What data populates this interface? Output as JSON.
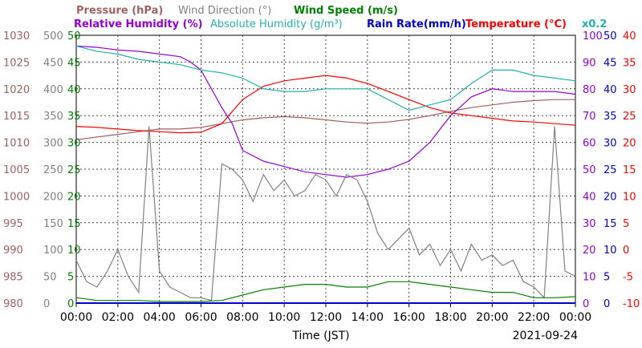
{
  "chart_data": {
    "type": "line",
    "title_row1": [
      {
        "text": "Pressure (hPa)",
        "color": "#a06060"
      },
      {
        "text": "Wind Direction (°)",
        "color": "#808080"
      },
      {
        "text": "Wind Speed (m/s)",
        "color": "#008000"
      }
    ],
    "title_row2": [
      {
        "text": "Relative Humidity (%)",
        "color": "#9400d3"
      },
      {
        "text": "Absolute Humidity (g/m³)",
        "color": "#20b2aa"
      },
      {
        "text": "Rain Rate(mm/h)",
        "color": "#0000cd"
      },
      {
        "text": "Temperature (°C)",
        "color": "#ff0000"
      },
      {
        "text": "x0.2",
        "color": "#20b2aa"
      }
    ],
    "xlabel": "Time (JST)",
    "date": "2021-09-24",
    "x_ticks": [
      "00:00",
      "02:00",
      "04:00",
      "06:00",
      "08:00",
      "10:00",
      "12:00",
      "14:00",
      "16:00",
      "18:00",
      "20:00",
      "22:00",
      "00:00"
    ],
    "x_range_hours": [
      0,
      24
    ],
    "grid": true,
    "axes": {
      "pressure": {
        "ticks": [
          980,
          985,
          990,
          995,
          1000,
          1005,
          1010,
          1015,
          1020,
          1025,
          1030
        ],
        "range": [
          980,
          1030
        ],
        "color": "#a06060"
      },
      "wind_direction": {
        "ticks": [
          0,
          50,
          100,
          150,
          200,
          250,
          300,
          350,
          400,
          450,
          500
        ],
        "range": [
          0,
          500
        ],
        "color": "#808080"
      },
      "wind_speed": {
        "ticks": [
          0,
          5,
          10,
          15,
          20,
          25,
          30,
          35,
          40,
          45,
          50
        ],
        "range": [
          0,
          50
        ],
        "color": "#008000"
      },
      "relative_humidity": {
        "ticks": [
          0,
          10,
          20,
          30,
          40,
          50,
          60,
          70,
          80,
          90,
          100
        ],
        "range": [
          0,
          100
        ],
        "color": "#9400d3"
      },
      "rain_rate": {
        "ticks": [
          0,
          5,
          10,
          15,
          20,
          25,
          30,
          35,
          40,
          45,
          50
        ],
        "range": [
          0,
          50
        ],
        "color": "#0000cd"
      },
      "temperature": {
        "ticks": [
          -10,
          -5,
          0,
          5,
          10,
          15,
          20,
          25,
          30,
          35,
          40
        ],
        "range": [
          -10,
          40
        ],
        "color": "#ff0000"
      }
    },
    "series": [
      {
        "name": "Pressure (hPa)",
        "axis": "pressure",
        "color": "#a06060",
        "x": [
          0,
          1,
          2,
          3,
          4,
          5,
          6,
          7,
          8,
          9,
          10,
          11,
          12,
          13,
          14,
          15,
          16,
          17,
          18,
          19,
          20,
          21,
          22,
          23,
          24
        ],
        "y": [
          1010.5,
          1011,
          1011.5,
          1012,
          1012.5,
          1012.5,
          1012.8,
          1013.5,
          1014.2,
          1014.6,
          1014.8,
          1014.6,
          1014.2,
          1013.8,
          1013.6,
          1013.8,
          1014.3,
          1015,
          1015.8,
          1016.5,
          1017,
          1017.5,
          1017.8,
          1018,
          1018
        ]
      },
      {
        "name": "Temperature (°C)",
        "axis": "temperature",
        "color": "#ff0000",
        "x": [
          0,
          1,
          2,
          3,
          4,
          5,
          6,
          7,
          8,
          9,
          10,
          11,
          12,
          13,
          14,
          15,
          16,
          17,
          18,
          19,
          20,
          21,
          22,
          23,
          24
        ],
        "y": [
          23,
          22.8,
          22.5,
          22.2,
          22,
          21.8,
          21.9,
          23.5,
          28,
          30.5,
          31.5,
          32,
          32.5,
          32,
          31,
          29.5,
          28,
          26.5,
          25.5,
          25,
          24.5,
          24,
          23.8,
          23.5,
          23.2
        ]
      },
      {
        "name": "Relative Humidity (%)",
        "axis": "relative_humidity",
        "color": "#9400d3",
        "x": [
          0,
          1,
          2,
          3,
          4,
          5,
          5.5,
          6,
          6.5,
          7,
          7.5,
          8,
          9,
          10,
          11,
          12,
          13,
          14,
          15,
          16,
          17,
          18,
          19,
          20,
          21,
          22,
          23,
          24
        ],
        "y": [
          96,
          95.5,
          94.5,
          94,
          93,
          92,
          90,
          87,
          80,
          73,
          67,
          57,
          53,
          51,
          49,
          48,
          47,
          48,
          50,
          53,
          60,
          70,
          77,
          80,
          79,
          79,
          79,
          78
        ]
      },
      {
        "name": "Absolute Humidity (g/m³) x0.2",
        "axis": "relative_humidity",
        "color": "#20b2aa",
        "x": [
          0,
          1,
          2,
          3,
          4,
          5,
          6,
          7,
          8,
          9,
          10,
          11,
          12,
          13,
          14,
          15,
          16,
          17,
          18,
          19,
          20,
          21,
          22,
          23,
          24
        ],
        "y": [
          96,
          94,
          93,
          91,
          90,
          89,
          87,
          86,
          84,
          80,
          79,
          79,
          80,
          80,
          80,
          76,
          72,
          74,
          76,
          82,
          87,
          87,
          85,
          84,
          83
        ]
      },
      {
        "name": "Wind Direction (°)",
        "axis": "wind_direction",
        "color": "#808080",
        "x": [
          0,
          0.5,
          1,
          1.5,
          2,
          2.5,
          3,
          3.5,
          4,
          4.5,
          5,
          5.5,
          6,
          6.5,
          7,
          7.5,
          8,
          8.5,
          9,
          9.5,
          10,
          10.5,
          11,
          11.5,
          12,
          12.5,
          13,
          13.5,
          14,
          14.5,
          15,
          15.5,
          16,
          16.5,
          17,
          17.5,
          18,
          18.5,
          19,
          19.5,
          20,
          20.5,
          21,
          21.5,
          22,
          22.5,
          23,
          23.5,
          24
        ],
        "y": [
          80,
          40,
          30,
          60,
          100,
          50,
          20,
          330,
          60,
          30,
          20,
          10,
          10,
          5,
          260,
          250,
          230,
          190,
          240,
          210,
          230,
          200,
          210,
          240,
          230,
          200,
          240,
          230,
          190,
          130,
          100,
          120,
          140,
          90,
          110,
          70,
          100,
          60,
          110,
          80,
          90,
          70,
          80,
          40,
          30,
          10,
          330,
          60,
          50
        ]
      },
      {
        "name": "Wind Speed (m/s)",
        "axis": "wind_speed",
        "color": "#008000",
        "x": [
          0,
          1,
          2,
          3,
          4,
          5,
          6,
          7,
          8,
          9,
          10,
          11,
          12,
          13,
          14,
          15,
          16,
          17,
          18,
          19,
          20,
          21,
          22,
          23,
          24
        ],
        "y": [
          1,
          0.5,
          0.5,
          0.5,
          0.3,
          0.3,
          0.3,
          0.5,
          1.5,
          2.5,
          3,
          3.5,
          3.5,
          3,
          3,
          4,
          4,
          3.5,
          3,
          2.5,
          2,
          2,
          1,
          1,
          1.2
        ]
      },
      {
        "name": "Rain Rate(mm/h)",
        "axis": "rain_rate",
        "color": "#0000cd",
        "x": [
          0,
          24
        ],
        "y": [
          0,
          0
        ]
      }
    ]
  }
}
